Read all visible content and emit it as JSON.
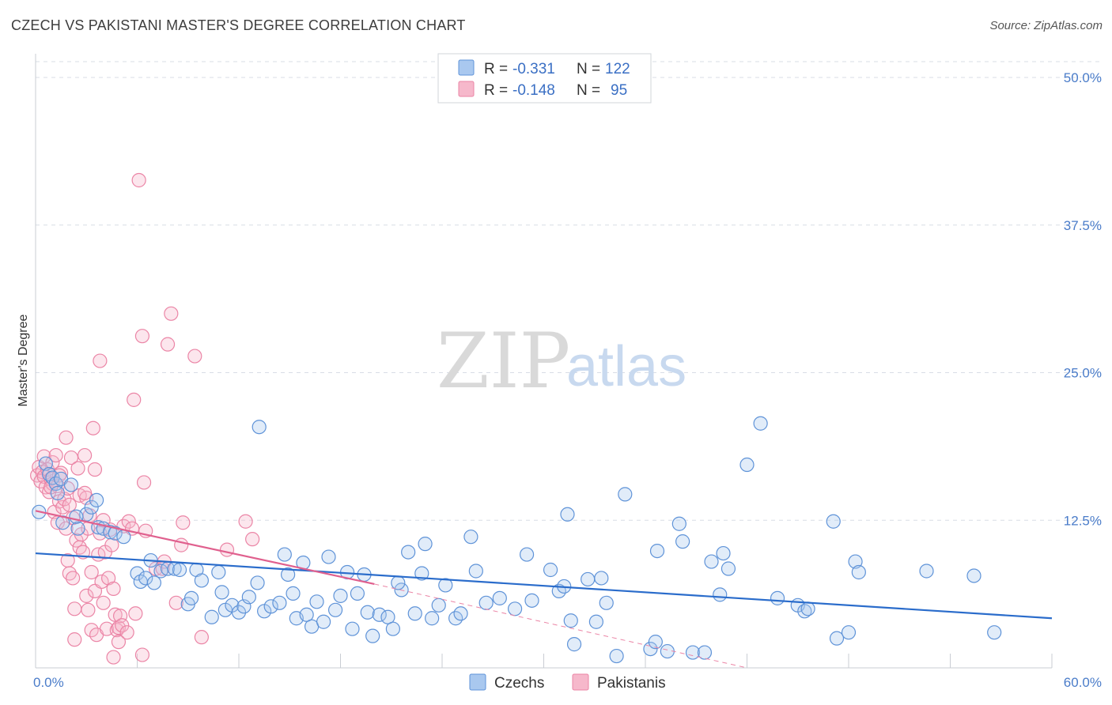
{
  "header": {
    "title": "CZECH VS PAKISTANI MASTER'S DEGREE CORRELATION CHART",
    "source": "Source: ZipAtlas.com"
  },
  "watermark": {
    "zip": "ZIP",
    "atlas": "atlas"
  },
  "legend": {
    "rows": [
      {
        "r_label": "R =",
        "r_value": "-0.331",
        "n_label": "N =",
        "n_value": "122",
        "color": "#6e9fe0"
      },
      {
        "r_label": "R =",
        "r_value": "-0.148",
        "n_label": "N =",
        "n_value": "95",
        "color": "#ef8fae"
      }
    ]
  },
  "bottom_legend": {
    "czechs": "Czechs",
    "pakistanis": "Pakistanis"
  },
  "colors": {
    "czech_fill": "#a9c8ef",
    "czech_stroke": "#5f93d8",
    "czech_line": "#2a6ccb",
    "pak_fill": "#f6b8cb",
    "pak_stroke": "#eb85a6",
    "pak_line": "#e0608e",
    "grid": "#d8dde6",
    "tick_text": "#4a7cc9"
  },
  "chart_data": {
    "type": "scatter",
    "title": "CZECH VS PAKISTANI MASTER'S DEGREE CORRELATION CHART",
    "xlabel": "",
    "ylabel": "Master's Degree",
    "xlim": [
      0,
      60
    ],
    "ylim": [
      0,
      50
    ],
    "x_tick_labels": [
      "0.0%",
      "60.0%"
    ],
    "y_tick_labels": [
      "12.5%",
      "25.0%",
      "37.5%",
      "50.0%"
    ],
    "y_ticks": [
      12.5,
      25.0,
      37.5,
      50.0
    ],
    "grid": true,
    "legend_position": "top-center",
    "series": [
      {
        "name": "Czechs",
        "R": -0.331,
        "N": 122,
        "trend": {
          "x": [
            0,
            60
          ],
          "y": [
            9.7,
            4.2
          ]
        },
        "points": [
          [
            0.2,
            13.2
          ],
          [
            0.6,
            17.3
          ],
          [
            0.8,
            16.4
          ],
          [
            1.0,
            16.1
          ],
          [
            1.2,
            15.6
          ],
          [
            1.3,
            14.8
          ],
          [
            1.5,
            16.0
          ],
          [
            1.6,
            12.3
          ],
          [
            2.1,
            15.5
          ],
          [
            2.5,
            11.8
          ],
          [
            3.0,
            13.0
          ],
          [
            3.3,
            13.6
          ],
          [
            3.7,
            11.9
          ],
          [
            4.0,
            11.8
          ],
          [
            4.4,
            11.5
          ],
          [
            4.7,
            11.4
          ],
          [
            5.2,
            11.1
          ],
          [
            6.0,
            8.0
          ],
          [
            6.2,
            7.3
          ],
          [
            6.5,
            7.6
          ],
          [
            7.0,
            7.2
          ],
          [
            7.4,
            8.2
          ],
          [
            7.8,
            8.4
          ],
          [
            8.2,
            8.4
          ],
          [
            8.5,
            8.3
          ],
          [
            9.0,
            5.4
          ],
          [
            9.2,
            5.9
          ],
          [
            9.5,
            8.3
          ],
          [
            9.8,
            7.4
          ],
          [
            10.4,
            4.3
          ],
          [
            10.8,
            8.1
          ],
          [
            11.2,
            4.9
          ],
          [
            11.6,
            5.3
          ],
          [
            12.0,
            4.7
          ],
          [
            12.3,
            5.2
          ],
          [
            12.6,
            6.0
          ],
          [
            13.1,
            7.2
          ],
          [
            13.5,
            4.8
          ],
          [
            13.9,
            5.2
          ],
          [
            14.4,
            5.5
          ],
          [
            14.7,
            9.6
          ],
          [
            14.9,
            7.9
          ],
          [
            15.2,
            6.3
          ],
          [
            15.4,
            4.2
          ],
          [
            15.8,
            8.9
          ],
          [
            16.0,
            4.5
          ],
          [
            16.3,
            3.5
          ],
          [
            16.6,
            5.6
          ],
          [
            17.0,
            3.9
          ],
          [
            17.3,
            9.4
          ],
          [
            17.7,
            4.9
          ],
          [
            18.0,
            6.1
          ],
          [
            18.4,
            8.1
          ],
          [
            18.7,
            3.3
          ],
          [
            19.0,
            6.3
          ],
          [
            19.4,
            7.9
          ],
          [
            19.6,
            4.7
          ],
          [
            19.9,
            2.7
          ],
          [
            20.3,
            4.5
          ],
          [
            20.8,
            4.3
          ],
          [
            21.1,
            3.3
          ],
          [
            21.6,
            6.6
          ],
          [
            22.0,
            9.8
          ],
          [
            22.4,
            4.6
          ],
          [
            22.8,
            8.0
          ],
          [
            23.0,
            10.5
          ],
          [
            23.4,
            4.2
          ],
          [
            23.8,
            5.3
          ],
          [
            24.2,
            7.0
          ],
          [
            24.8,
            4.2
          ],
          [
            25.1,
            4.6
          ],
          [
            25.7,
            11.1
          ],
          [
            26.0,
            8.2
          ],
          [
            26.6,
            5.5
          ],
          [
            27.4,
            5.9
          ],
          [
            28.3,
            5.0
          ],
          [
            29.0,
            9.6
          ],
          [
            29.3,
            5.7
          ],
          [
            30.4,
            8.3
          ],
          [
            30.9,
            6.5
          ],
          [
            31.2,
            6.9
          ],
          [
            31.4,
            13.0
          ],
          [
            31.6,
            4.0
          ],
          [
            31.8,
            2.0
          ],
          [
            32.6,
            7.5
          ],
          [
            33.1,
            3.9
          ],
          [
            33.4,
            7.6
          ],
          [
            33.7,
            5.5
          ],
          [
            34.3,
            1.0
          ],
          [
            34.8,
            14.7
          ],
          [
            36.3,
            1.6
          ],
          [
            36.6,
            2.2
          ],
          [
            36.7,
            9.9
          ],
          [
            37.3,
            1.4
          ],
          [
            38.0,
            12.2
          ],
          [
            38.2,
            10.7
          ],
          [
            38.8,
            1.3
          ],
          [
            39.5,
            1.3
          ],
          [
            39.9,
            9.0
          ],
          [
            40.6,
            9.7
          ],
          [
            40.9,
            8.4
          ],
          [
            40.4,
            6.2
          ],
          [
            42.0,
            17.2
          ],
          [
            42.8,
            20.7
          ],
          [
            43.8,
            5.9
          ],
          [
            45.0,
            5.3
          ],
          [
            45.4,
            4.8
          ],
          [
            45.6,
            5.0
          ],
          [
            47.1,
            12.4
          ],
          [
            47.3,
            2.5
          ],
          [
            48.0,
            3.0
          ],
          [
            48.4,
            9.0
          ],
          [
            48.6,
            8.1
          ],
          [
            52.6,
            8.2
          ],
          [
            55.4,
            7.8
          ],
          [
            56.6,
            3.0
          ],
          [
            13.2,
            20.4
          ],
          [
            3.6,
            14.2
          ],
          [
            2.4,
            12.8
          ],
          [
            6.8,
            9.1
          ],
          [
            11.0,
            6.4
          ],
          [
            21.4,
            7.2
          ]
        ]
      },
      {
        "name": "Pakistanis",
        "R": -0.148,
        "N": 95,
        "trend": {
          "x": [
            0,
            20
          ],
          "y": [
            13.3,
            7.1
          ]
        },
        "trend_dashed": {
          "x": [
            20,
            42
          ],
          "y": [
            7.1,
            0.0
          ]
        },
        "points": [
          [
            0.1,
            16.3
          ],
          [
            0.2,
            17.0
          ],
          [
            0.3,
            15.8
          ],
          [
            0.4,
            16.6
          ],
          [
            0.5,
            16.2
          ],
          [
            0.5,
            17.9
          ],
          [
            0.6,
            15.3
          ],
          [
            0.7,
            16.8
          ],
          [
            0.8,
            14.9
          ],
          [
            0.9,
            16.0
          ],
          [
            1.0,
            15.6
          ],
          [
            1.0,
            17.4
          ],
          [
            1.1,
            13.2
          ],
          [
            1.2,
            18.0
          ],
          [
            1.3,
            15.4
          ],
          [
            1.3,
            12.3
          ],
          [
            1.4,
            14.1
          ],
          [
            1.5,
            16.5
          ],
          [
            1.6,
            13.6
          ],
          [
            1.7,
            14.3
          ],
          [
            1.8,
            19.5
          ],
          [
            1.8,
            11.8
          ],
          [
            1.9,
            15.2
          ],
          [
            1.9,
            9.1
          ],
          [
            2.0,
            13.8
          ],
          [
            2.0,
            8.0
          ],
          [
            2.1,
            17.8
          ],
          [
            2.2,
            12.7
          ],
          [
            2.2,
            7.6
          ],
          [
            2.3,
            5.0
          ],
          [
            2.3,
            2.4
          ],
          [
            2.4,
            10.8
          ],
          [
            2.5,
            16.9
          ],
          [
            2.6,
            14.6
          ],
          [
            2.6,
            10.2
          ],
          [
            2.7,
            11.3
          ],
          [
            2.8,
            9.8
          ],
          [
            2.9,
            18.0
          ],
          [
            3.0,
            14.4
          ],
          [
            3.0,
            6.1
          ],
          [
            3.1,
            4.9
          ],
          [
            3.1,
            11.8
          ],
          [
            3.2,
            12.9
          ],
          [
            3.3,
            8.1
          ],
          [
            3.3,
            3.2
          ],
          [
            3.4,
            20.3
          ],
          [
            3.5,
            6.5
          ],
          [
            3.6,
            2.8
          ],
          [
            3.7,
            9.6
          ],
          [
            3.8,
            11.4
          ],
          [
            3.8,
            26.0
          ],
          [
            3.9,
            7.3
          ],
          [
            4.0,
            12.5
          ],
          [
            4.0,
            5.5
          ],
          [
            4.1,
            9.8
          ],
          [
            4.2,
            3.3
          ],
          [
            4.3,
            7.6
          ],
          [
            4.4,
            11.7
          ],
          [
            4.5,
            10.4
          ],
          [
            4.6,
            6.7
          ],
          [
            4.6,
            0.9
          ],
          [
            4.7,
            4.5
          ],
          [
            4.8,
            3.2
          ],
          [
            4.9,
            3.4
          ],
          [
            5.0,
            4.4
          ],
          [
            5.1,
            3.6
          ],
          [
            5.2,
            12.0
          ],
          [
            5.4,
            3.0
          ],
          [
            5.5,
            12.4
          ],
          [
            5.7,
            11.8
          ],
          [
            5.8,
            22.7
          ],
          [
            5.9,
            4.6
          ],
          [
            6.1,
            41.3
          ],
          [
            6.3,
            28.1
          ],
          [
            6.4,
            15.7
          ],
          [
            6.3,
            1.1
          ],
          [
            6.5,
            11.6
          ],
          [
            7.1,
            8.4
          ],
          [
            7.5,
            8.4
          ],
          [
            7.6,
            9.0
          ],
          [
            7.8,
            27.4
          ],
          [
            8.0,
            30.0
          ],
          [
            8.3,
            5.5
          ],
          [
            8.6,
            10.4
          ],
          [
            8.7,
            12.3
          ],
          [
            9.4,
            26.4
          ],
          [
            9.8,
            2.6
          ],
          [
            11.3,
            10.0
          ],
          [
            12.4,
            12.4
          ],
          [
            12.8,
            10.9
          ],
          [
            2.9,
            14.8
          ],
          [
            1.4,
            16.3
          ],
          [
            0.9,
            15.3
          ],
          [
            3.5,
            16.8
          ],
          [
            4.9,
            2.2
          ]
        ]
      }
    ]
  }
}
